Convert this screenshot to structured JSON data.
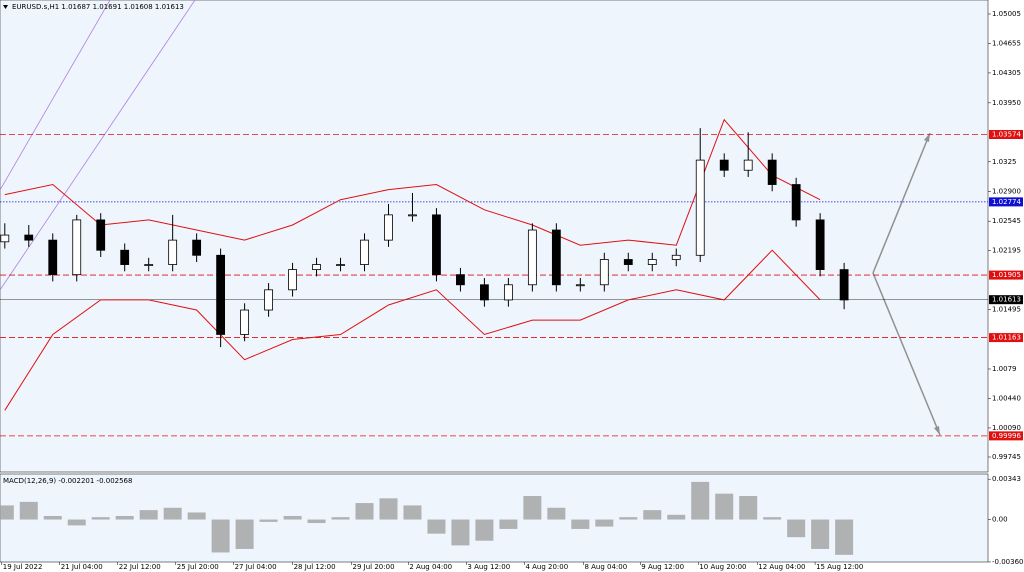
{
  "chart_data": {
    "type": "candlestick",
    "title": "EURUSD.s,H1  1.01687 1.01691 1.01608 1.01613",
    "x": [
      0,
      1,
      2,
      3,
      4,
      5,
      6,
      7,
      8,
      9,
      10,
      11,
      12,
      13,
      14,
      15,
      16,
      17,
      18,
      19,
      20,
      21,
      22,
      23,
      24,
      25,
      26,
      27,
      28,
      29,
      30,
      31,
      32,
      33,
      34,
      35
    ],
    "open": [
      1.023,
      1.0238,
      1.0232,
      1.0191,
      1.0256,
      1.022,
      1.0203,
      1.0203,
      1.0232,
      1.0214,
      1.012,
      1.0149,
      1.0173,
      1.0197,
      1.0203,
      1.0203,
      1.0232,
      1.0262,
      1.0262,
      1.0191,
      1.0179,
      1.0161,
      1.0179,
      1.0244,
      1.0179,
      1.0179,
      1.0209,
      1.0203,
      1.0209,
      1.0214,
      1.0327,
      1.0315,
      1.0327,
      1.0298,
      1.0256,
      1.0197
    ],
    "high": [
      1.0252,
      1.025,
      1.024,
      1.0262,
      1.0264,
      1.0228,
      1.0211,
      1.0262,
      1.024,
      1.0222,
      1.0157,
      1.0181,
      1.0205,
      1.0211,
      1.0211,
      1.024,
      1.0275,
      1.0288,
      1.027,
      1.0199,
      1.0187,
      1.0187,
      1.0252,
      1.0252,
      1.0187,
      1.0217,
      1.0217,
      1.0217,
      1.0222,
      1.0365,
      1.0335,
      1.036,
      1.0335,
      1.0306,
      1.0264,
      1.0205
    ],
    "low": [
      1.0222,
      1.0224,
      1.0183,
      1.0183,
      1.0212,
      1.0195,
      1.0195,
      1.0195,
      1.0206,
      1.0105,
      1.0112,
      1.0141,
      1.0165,
      1.0189,
      1.0195,
      1.0195,
      1.0224,
      1.0254,
      1.0183,
      1.0171,
      1.0153,
      1.0153,
      1.0171,
      1.0171,
      1.0171,
      1.0171,
      1.0195,
      1.0195,
      1.0201,
      1.0206,
      1.0307,
      1.0307,
      1.029,
      1.0248,
      1.0189,
      1.015
    ],
    "close": [
      1.0238,
      1.0232,
      1.0191,
      1.0256,
      1.022,
      1.0203,
      1.0203,
      1.0232,
      1.0214,
      1.012,
      1.0149,
      1.0173,
      1.0197,
      1.0203,
      1.0203,
      1.0232,
      1.0262,
      1.0262,
      1.0191,
      1.0179,
      1.0161,
      1.0179,
      1.0244,
      1.0179,
      1.0179,
      1.0209,
      1.0203,
      1.0209,
      1.0214,
      1.0327,
      1.0315,
      1.0327,
      1.0298,
      1.0256,
      1.0197,
      1.0161
    ],
    "band_x": [
      0,
      2,
      4,
      6,
      8,
      10,
      12,
      14,
      16,
      18,
      20,
      22,
      24,
      26,
      28,
      30,
      32,
      34
    ],
    "band_upper": [
      1.0286,
      1.0298,
      1.025,
      1.0256,
      1.0244,
      1.0232,
      1.025,
      1.028,
      1.0292,
      1.0298,
      1.0268,
      1.025,
      1.0226,
      1.0232,
      1.0226,
      1.0375,
      1.0309,
      1.028
    ],
    "band_lower": [
      1.003,
      1.012,
      1.0161,
      1.0161,
      1.0149,
      1.009,
      1.0114,
      1.012,
      1.0155,
      1.0173,
      1.012,
      1.0137,
      1.0137,
      1.0161,
      1.0173,
      1.0161,
      1.022,
      1.0161
    ],
    "band_color": "#e01010",
    "xlim": [
      -0.2,
      41
    ],
    "ylim": [
      0.99567,
      1.05171
    ],
    "yticks": [
      1.05005,
      1.04655,
      1.04305,
      {
        "value": 1.0395,
        "label": "1.03950"
      },
      1.0325,
      {
        "value": 1.029,
        "label": "1.02900"
      },
      1.02545,
      1.02195,
      1.01495,
      1.0079,
      {
        "value": 1.0044,
        "label": "1.00440"
      },
      {
        "value": 1.0009,
        "label": "1.00090"
      },
      0.99745
    ],
    "xticks": [
      {
        "value": -0.125,
        "label": "19 Jul 2022"
      },
      {
        "value": 2.29,
        "label": "21 Jul 04:00"
      },
      {
        "value": 4.71,
        "label": "22 Jul 12:00"
      },
      {
        "value": 7.13,
        "label": "25 Jul 20:00"
      },
      {
        "value": 9.54,
        "label": "27 Jul 04:00"
      },
      {
        "value": 12,
        "label": "28 Jul 12:00"
      },
      {
        "value": 14.46,
        "label": "29 Jul 20:00"
      },
      {
        "value": 16.83,
        "label": "2 Aug 04:00"
      },
      {
        "value": 19.25,
        "label": "3 Aug 12:00"
      },
      {
        "value": 21.67,
        "label": "4 Aug 20:00"
      },
      {
        "value": 24.13,
        "label": "8 Aug 04:00"
      },
      {
        "value": 26.5,
        "label": "9 Aug 12:00"
      },
      {
        "value": 28.92,
        "label": "10 Aug 20:00"
      },
      {
        "value": 31.38,
        "label": "12 Aug 04:00"
      },
      {
        "value": 33.79,
        "label": "15 Aug 12:00"
      }
    ],
    "levels": [
      {
        "value": 1.03574,
        "color": "#e01010",
        "style": "dashed"
      },
      {
        "value": 1.02774,
        "color": "#1010d0",
        "style": "dotted"
      },
      {
        "value": 1.01905,
        "color": "#e01010",
        "style": "dashed"
      },
      {
        "value": 1.01613,
        "color": "#000000",
        "style": "solid"
      },
      {
        "value": 1.01163,
        "color": "#e01010",
        "style": "dashed"
      },
      {
        "value": 0.99996,
        "color": "#e01010",
        "style": "dashed"
      }
    ],
    "macd": {
      "title": "MACD(12,26,9) -0.002201 -0.002568",
      "values": [
        0.0012,
        0.0015,
        0.0003,
        -0.0005,
        0.0002,
        0.0003,
        0.0008,
        0.001,
        0.0006,
        -0.0028,
        -0.0025,
        -0.0002,
        0.0003,
        -0.0003,
        0.0002,
        0.0014,
        0.0018,
        0.0012,
        -0.0012,
        -0.0022,
        -0.0018,
        -0.0008,
        0.002,
        0.001,
        -0.0008,
        -0.0006,
        0.0002,
        0.0008,
        0.0004,
        0.0032,
        0.0022,
        0.002,
        0.0002,
        -0.0015,
        -0.0025,
        -0.003
      ],
      "color": "#a0a0a0",
      "ylim": [
        -0.00361,
        0.00387
      ],
      "yticks": [
        0.00343,
        {
          "value": 0,
          "label": "0.00"
        },
        -0.003606
      ]
    }
  }
}
